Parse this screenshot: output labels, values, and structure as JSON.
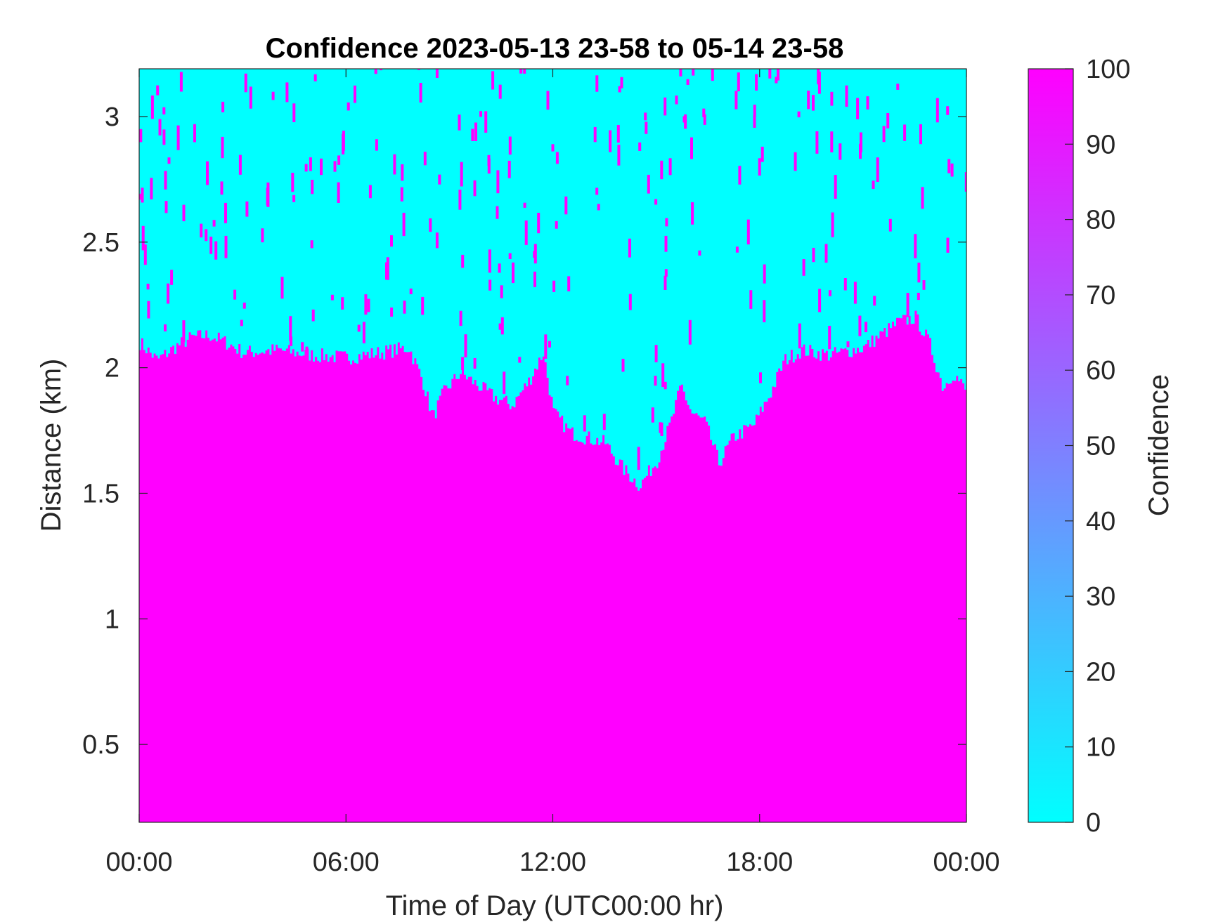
{
  "chart_data": {
    "type": "heatmap",
    "title": "Confidence 2023-05-13 23-58 to 05-14 23-58",
    "xlabel": "Time of Day (UTC00:00 hr)",
    "ylabel": "Distance (km)",
    "xlim_hours": [
      0,
      24
    ],
    "ylim": [
      0.19,
      3.19
    ],
    "x_ticks": [
      {
        "value": 0,
        "label": "00:00"
      },
      {
        "value": 6,
        "label": "06:00"
      },
      {
        "value": 12,
        "label": "12:00"
      },
      {
        "value": 18,
        "label": "18:00"
      },
      {
        "value": 24,
        "label": "00:00"
      }
    ],
    "y_ticks": [
      {
        "value": 0.5,
        "label": "0.5"
      },
      {
        "value": 1,
        "label": "1"
      },
      {
        "value": 1.5,
        "label": "1.5"
      },
      {
        "value": 2,
        "label": "2"
      },
      {
        "value": 2.5,
        "label": "2.5"
      },
      {
        "value": 3,
        "label": "3"
      }
    ],
    "colorbar": {
      "label": "Confidence",
      "range": [
        0,
        100
      ],
      "ticks": [
        0,
        10,
        20,
        30,
        40,
        50,
        60,
        70,
        80,
        90,
        100
      ],
      "color_low": "#00ffff",
      "color_high": "#ff00ff"
    },
    "boundary_km": [
      {
        "t": 0.0,
        "d": 2.1
      },
      {
        "t": 0.5,
        "d": 2.03
      },
      {
        "t": 1.0,
        "d": 2.08
      },
      {
        "t": 1.5,
        "d": 2.12
      },
      {
        "t": 2.0,
        "d": 2.13
      },
      {
        "t": 2.5,
        "d": 2.1
      },
      {
        "t": 3.0,
        "d": 2.06
      },
      {
        "t": 4.0,
        "d": 2.07
      },
      {
        "t": 5.0,
        "d": 2.05
      },
      {
        "t": 6.0,
        "d": 2.04
      },
      {
        "t": 7.0,
        "d": 2.06
      },
      {
        "t": 7.8,
        "d": 2.08
      },
      {
        "t": 8.2,
        "d": 1.95
      },
      {
        "t": 8.5,
        "d": 1.8
      },
      {
        "t": 8.8,
        "d": 1.9
      },
      {
        "t": 9.3,
        "d": 1.98
      },
      {
        "t": 9.8,
        "d": 1.93
      },
      {
        "t": 10.3,
        "d": 1.88
      },
      {
        "t": 10.8,
        "d": 1.85
      },
      {
        "t": 11.3,
        "d": 1.95
      },
      {
        "t": 11.7,
        "d": 2.06
      },
      {
        "t": 12.0,
        "d": 1.82
      },
      {
        "t": 12.5,
        "d": 1.74
      },
      {
        "t": 13.0,
        "d": 1.72
      },
      {
        "t": 13.5,
        "d": 1.7
      },
      {
        "t": 14.0,
        "d": 1.6
      },
      {
        "t": 14.5,
        "d": 1.53
      },
      {
        "t": 15.0,
        "d": 1.63
      },
      {
        "t": 15.4,
        "d": 1.78
      },
      {
        "t": 15.7,
        "d": 1.93
      },
      {
        "t": 16.0,
        "d": 1.82
      },
      {
        "t": 16.4,
        "d": 1.78
      },
      {
        "t": 16.8,
        "d": 1.62
      },
      {
        "t": 17.2,
        "d": 1.72
      },
      {
        "t": 17.8,
        "d": 1.77
      },
      {
        "t": 18.3,
        "d": 1.9
      },
      {
        "t": 18.7,
        "d": 2.03
      },
      {
        "t": 19.2,
        "d": 2.07
      },
      {
        "t": 20.0,
        "d": 2.05
      },
      {
        "t": 21.0,
        "d": 2.08
      },
      {
        "t": 21.5,
        "d": 2.13
      },
      {
        "t": 22.0,
        "d": 2.18
      },
      {
        "t": 22.5,
        "d": 2.2
      },
      {
        "t": 22.9,
        "d": 2.1
      },
      {
        "t": 23.3,
        "d": 1.92
      },
      {
        "t": 23.6,
        "d": 1.98
      },
      {
        "t": 24.0,
        "d": 1.9
      }
    ]
  }
}
